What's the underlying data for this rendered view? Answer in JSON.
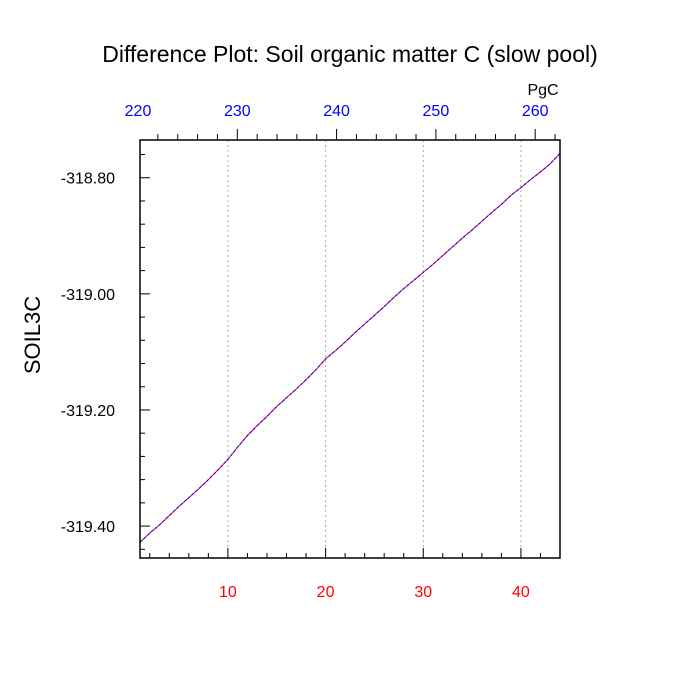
{
  "chart_data": {
    "type": "line",
    "title": "Difference Plot: Soil organic matter C (slow pool)",
    "ylabel": "SOIL3C",
    "xlabel": "",
    "top_axis_unit": "PgC",
    "xlim": [
      1,
      44
    ],
    "ylim": [
      -319.455,
      -318.735
    ],
    "x_ticks": [
      10,
      20,
      30,
      40
    ],
    "x_tick_labels": [
      "10",
      "20",
      "30",
      "40"
    ],
    "y_ticks": [
      -319.4,
      -319.2,
      -319.0,
      -318.8
    ],
    "y_tick_labels": [
      "-319.40",
      "-319.20",
      "-319.00",
      "-318.80"
    ],
    "top_ticks": [
      220,
      230,
      240,
      250,
      260
    ],
    "top_tick_labels": [
      "220",
      "230",
      "240",
      "250",
      "260"
    ],
    "top_axis_range": [
      220.2,
      262.5
    ],
    "grid": "vertical dotted at bottom ticks",
    "colors": {
      "line_primary": "#0000ff",
      "line_secondary": "#ff0000",
      "bottom_tick_labels": "#ff0000",
      "top_tick_labels": "#0000ff",
      "axes": "#000000",
      "grid": "#aaaaaa"
    },
    "series": [
      {
        "x": [
          1,
          2,
          3,
          4,
          5,
          6,
          7,
          8,
          9,
          10,
          11,
          12,
          13,
          14,
          15,
          16,
          17,
          18,
          19,
          20,
          21,
          22,
          23,
          24,
          25,
          26,
          27,
          28,
          29,
          30,
          31,
          32,
          33,
          34,
          35,
          36,
          37,
          38,
          39,
          40,
          41,
          42,
          43,
          44
        ],
        "values": [
          -319.428,
          -319.412,
          -319.398,
          -319.382,
          -319.366,
          -319.351,
          -319.336,
          -319.32,
          -319.303,
          -319.285,
          -319.264,
          -319.244,
          -319.227,
          -319.211,
          -319.194,
          -319.179,
          -319.164,
          -319.148,
          -319.131,
          -319.112,
          -319.098,
          -319.083,
          -319.067,
          -319.052,
          -319.037,
          -319.022,
          -319.006,
          -318.991,
          -318.977,
          -318.963,
          -318.949,
          -318.934,
          -318.919,
          -318.904,
          -318.89,
          -318.875,
          -318.86,
          -318.846,
          -318.83,
          -318.817,
          -318.803,
          -318.79,
          -318.776,
          -318.758
        ]
      }
    ]
  }
}
